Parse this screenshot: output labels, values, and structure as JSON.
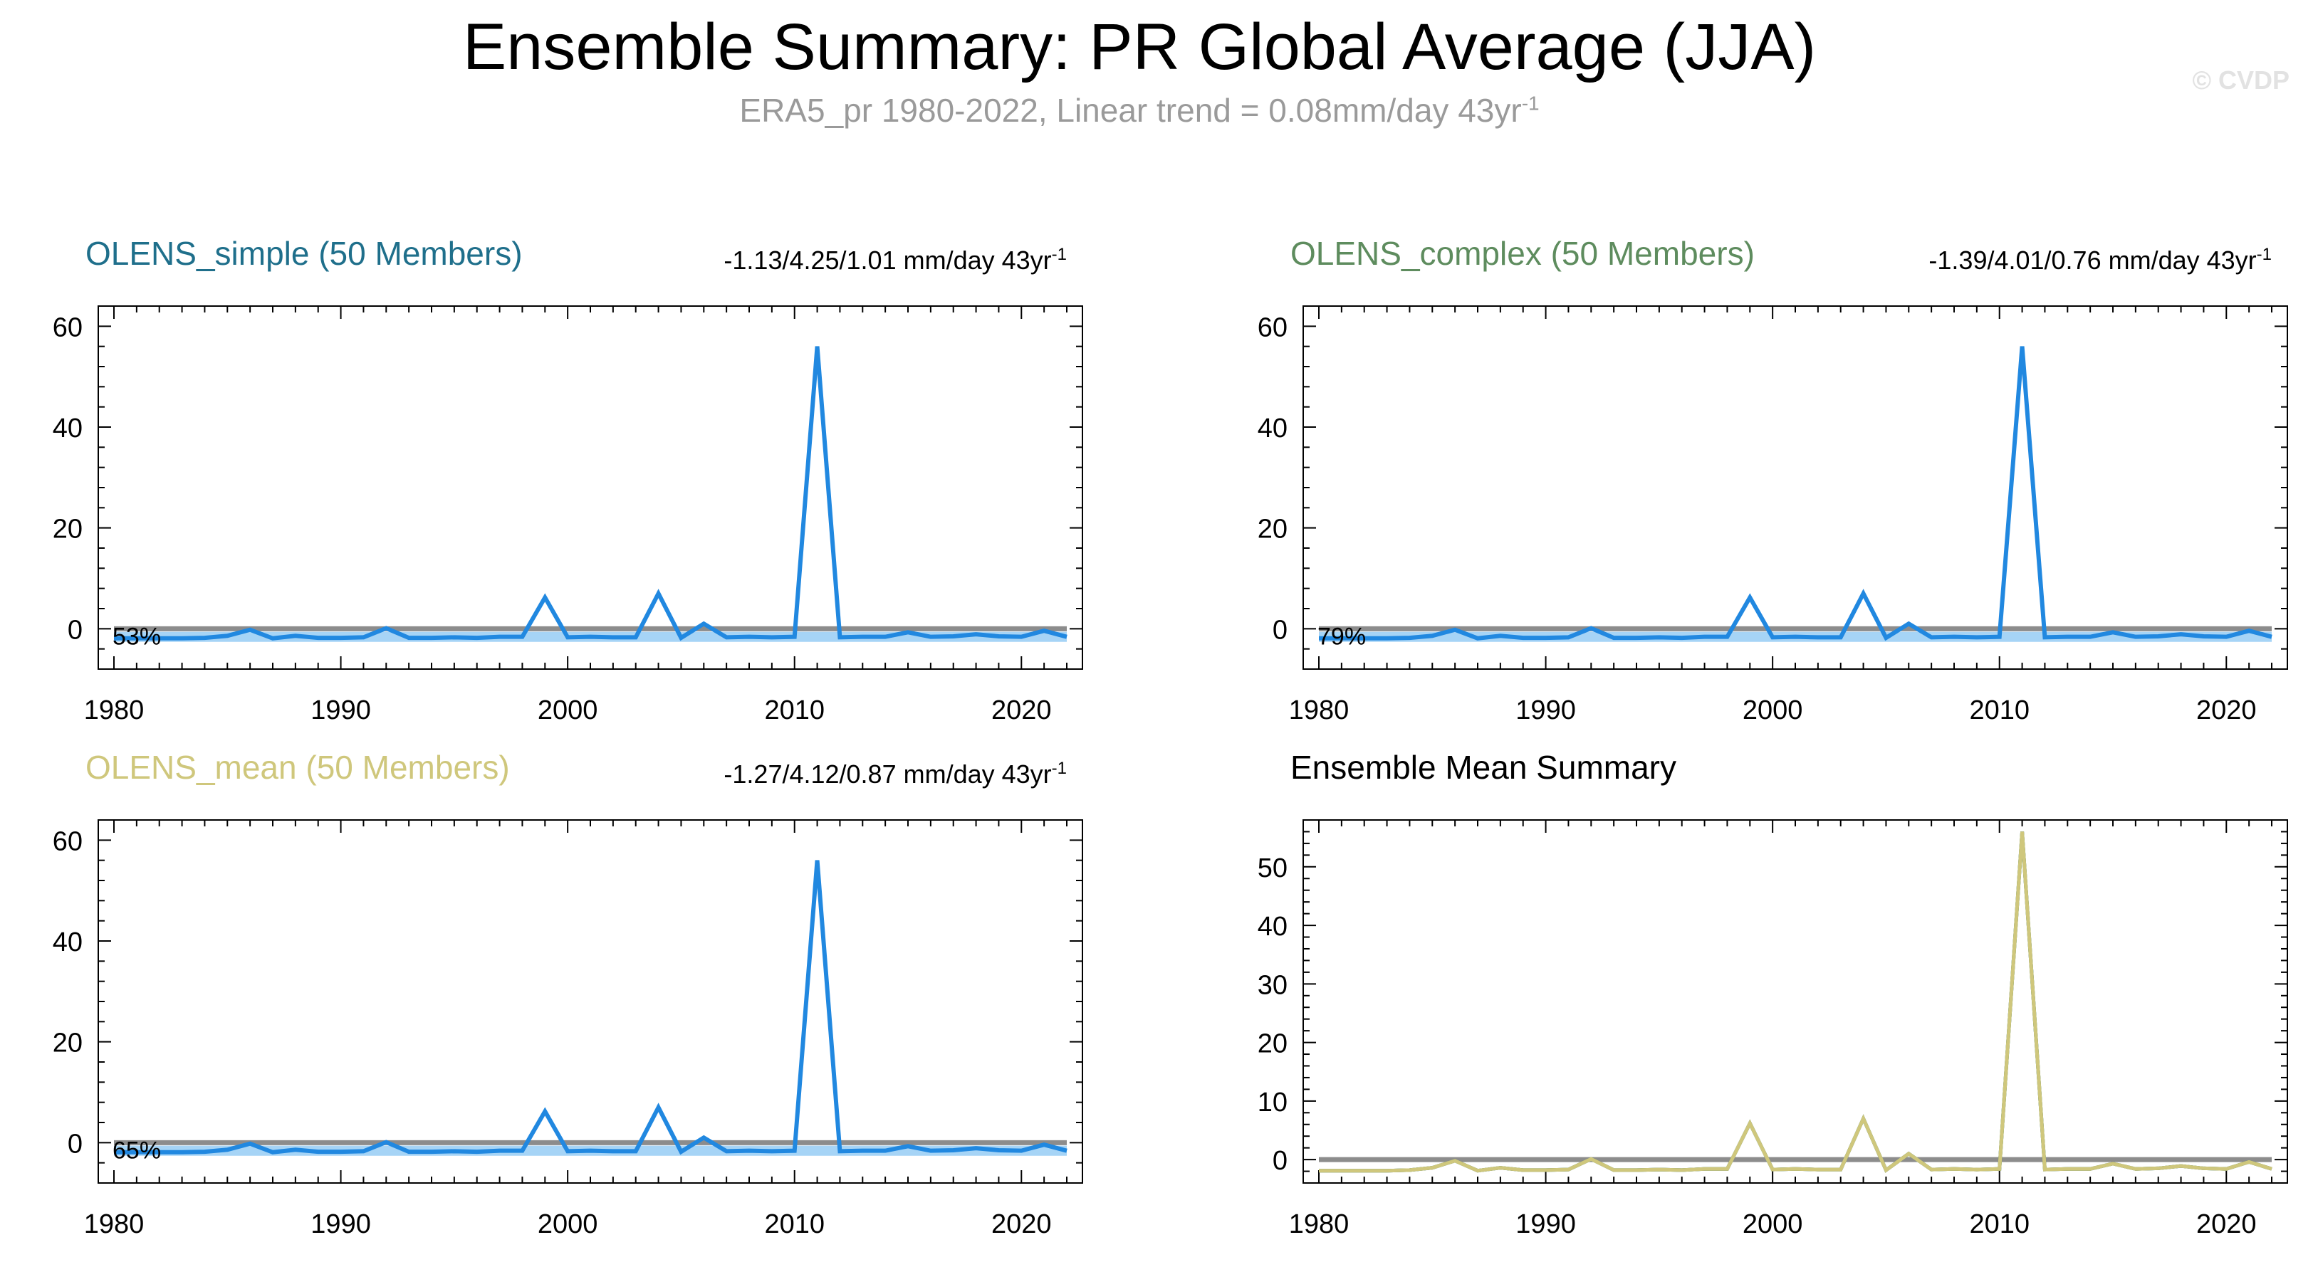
{
  "header": {
    "title": "Ensemble Summary: PR Global Average (JJA)",
    "subtitle_main": "ERA5_pr 1980-2022, Linear trend = 0.08mm/day 43yr",
    "subtitle_sup": "-1",
    "watermark": "© CVDP"
  },
  "colors": {
    "series_line": "#2188e0",
    "spread_fill": "#a6d4f6",
    "observation": "#8c8c8c",
    "olens_simple": "#1f6f8b",
    "olens_complex": "#5e8c5e",
    "olens_mean": "#cfc77c"
  },
  "chart_data": [
    {
      "type": "line",
      "title": "OLENS_simple (50 Members)",
      "title_color": "#1f6f8b",
      "trend_text": "-1.13/4.25/1.01 mm/day 43yr",
      "trend_sup": "-1",
      "percent_label": "53%",
      "x": [
        1980,
        1981,
        1982,
        1983,
        1984,
        1985,
        1986,
        1987,
        1988,
        1989,
        1990,
        1991,
        1992,
        1993,
        1994,
        1995,
        1996,
        1997,
        1998,
        1999,
        2000,
        2001,
        2002,
        2003,
        2004,
        2005,
        2006,
        2007,
        2008,
        2009,
        2010,
        2011,
        2012,
        2013,
        2014,
        2015,
        2016,
        2017,
        2018,
        2019,
        2020,
        2021,
        2022
      ],
      "series": [
        {
          "values": [
            -1.9,
            -1.9,
            -1.9,
            -1.9,
            -1.8,
            -1.4,
            -0.2,
            -1.9,
            -1.4,
            -1.8,
            -1.8,
            -1.7,
            0.1,
            -1.8,
            -1.8,
            -1.7,
            -1.8,
            -1.6,
            -1.6,
            6.2,
            -1.7,
            -1.6,
            -1.7,
            -1.7,
            7.0,
            -1.8,
            1.0,
            -1.7,
            -1.6,
            -1.7,
            -1.6,
            56.0,
            -1.7,
            -1.6,
            -1.6,
            -0.7,
            -1.6,
            -1.5,
            -1.1,
            -1.5,
            -1.6,
            -0.4,
            -1.6
          ]
        }
      ],
      "observation": {
        "values": [
          0.0,
          0.0,
          0.0,
          0.0,
          0.0,
          0.0,
          0.0,
          0.0,
          0.0,
          0.0,
          0.0,
          0.0,
          0.0,
          0.0,
          0.0,
          0.0,
          0.0,
          0.0,
          0.0,
          0.0,
          0.0,
          0.0,
          0.0,
          0.0,
          0.0,
          0.0,
          0.0,
          0.0,
          0.0,
          0.0,
          0.0,
          0.0,
          0.0,
          0.0,
          0.0,
          0.0,
          0.0,
          0.0,
          0.0,
          0.0,
          0.0,
          0.0,
          0.0
        ]
      },
      "band": {
        "upper": -0.6,
        "lower": -2.6
      },
      "xlim": [
        1980,
        2022
      ],
      "ylim": [
        -8,
        64
      ],
      "yticks": [
        0,
        20,
        40,
        60
      ],
      "xticks": [
        1980,
        1990,
        2000,
        2010,
        2020
      ]
    },
    {
      "type": "line",
      "title": "OLENS_complex (50 Members)",
      "title_color": "#5e8c5e",
      "trend_text": "-1.39/4.01/0.76 mm/day 43yr",
      "trend_sup": "-1",
      "percent_label": "79%",
      "x": [
        1980,
        1981,
        1982,
        1983,
        1984,
        1985,
        1986,
        1987,
        1988,
        1989,
        1990,
        1991,
        1992,
        1993,
        1994,
        1995,
        1996,
        1997,
        1998,
        1999,
        2000,
        2001,
        2002,
        2003,
        2004,
        2005,
        2006,
        2007,
        2008,
        2009,
        2010,
        2011,
        2012,
        2013,
        2014,
        2015,
        2016,
        2017,
        2018,
        2019,
        2020,
        2021,
        2022
      ],
      "series": [
        {
          "values": [
            -1.9,
            -1.9,
            -1.9,
            -1.9,
            -1.8,
            -1.4,
            -0.2,
            -1.9,
            -1.4,
            -1.8,
            -1.8,
            -1.7,
            0.1,
            -1.8,
            -1.8,
            -1.7,
            -1.8,
            -1.6,
            -1.6,
            6.2,
            -1.7,
            -1.6,
            -1.7,
            -1.7,
            7.0,
            -1.8,
            1.0,
            -1.7,
            -1.6,
            -1.7,
            -1.6,
            56.0,
            -1.7,
            -1.6,
            -1.6,
            -0.7,
            -1.6,
            -1.5,
            -1.1,
            -1.5,
            -1.6,
            -0.4,
            -1.6
          ]
        }
      ],
      "observation": {
        "values": [
          0.0,
          0.0,
          0.0,
          0.0,
          0.0,
          0.0,
          0.0,
          0.0,
          0.0,
          0.0,
          0.0,
          0.0,
          0.0,
          0.0,
          0.0,
          0.0,
          0.0,
          0.0,
          0.0,
          0.0,
          0.0,
          0.0,
          0.0,
          0.0,
          0.0,
          0.0,
          0.0,
          0.0,
          0.0,
          0.0,
          0.0,
          0.0,
          0.0,
          0.0,
          0.0,
          0.0,
          0.0,
          0.0,
          0.0,
          0.0,
          0.0,
          0.0,
          0.0
        ]
      },
      "band": {
        "upper": -0.6,
        "lower": -2.6
      },
      "xlim": [
        1980,
        2022
      ],
      "ylim": [
        -8,
        64
      ],
      "yticks": [
        0,
        20,
        40,
        60
      ],
      "xticks": [
        1980,
        1990,
        2000,
        2010,
        2020
      ]
    },
    {
      "type": "line",
      "title": "OLENS_mean (50 Members)",
      "title_color": "#cfc77c",
      "trend_text": "-1.27/4.12/0.87 mm/day 43yr",
      "trend_sup": "-1",
      "percent_label": "65%",
      "x": [
        1980,
        1981,
        1982,
        1983,
        1984,
        1985,
        1986,
        1987,
        1988,
        1989,
        1990,
        1991,
        1992,
        1993,
        1994,
        1995,
        1996,
        1997,
        1998,
        1999,
        2000,
        2001,
        2002,
        2003,
        2004,
        2005,
        2006,
        2007,
        2008,
        2009,
        2010,
        2011,
        2012,
        2013,
        2014,
        2015,
        2016,
        2017,
        2018,
        2019,
        2020,
        2021,
        2022
      ],
      "series": [
        {
          "values": [
            -1.9,
            -1.9,
            -1.9,
            -1.9,
            -1.8,
            -1.4,
            -0.2,
            -1.9,
            -1.4,
            -1.8,
            -1.8,
            -1.7,
            0.1,
            -1.8,
            -1.8,
            -1.7,
            -1.8,
            -1.6,
            -1.6,
            6.2,
            -1.7,
            -1.6,
            -1.7,
            -1.7,
            7.0,
            -1.8,
            1.0,
            -1.7,
            -1.6,
            -1.7,
            -1.6,
            56.0,
            -1.7,
            -1.6,
            -1.6,
            -0.7,
            -1.6,
            -1.5,
            -1.1,
            -1.5,
            -1.6,
            -0.4,
            -1.6
          ]
        }
      ],
      "observation": {
        "values": [
          0.0,
          0.0,
          0.0,
          0.0,
          0.0,
          0.0,
          0.0,
          0.0,
          0.0,
          0.0,
          0.0,
          0.0,
          0.0,
          0.0,
          0.0,
          0.0,
          0.0,
          0.0,
          0.0,
          0.0,
          0.0,
          0.0,
          0.0,
          0.0,
          0.0,
          0.0,
          0.0,
          0.0,
          0.0,
          0.0,
          0.0,
          0.0,
          0.0,
          0.0,
          0.0,
          0.0,
          0.0,
          0.0,
          0.0,
          0.0,
          0.0,
          0.0,
          0.0
        ]
      },
      "band": {
        "upper": -0.6,
        "lower": -2.6
      },
      "xlim": [
        1980,
        2022
      ],
      "ylim": [
        -8,
        64
      ],
      "yticks": [
        0,
        20,
        40,
        60
      ],
      "xticks": [
        1980,
        1990,
        2000,
        2010,
        2020
      ]
    },
    {
      "type": "line",
      "title": "Ensemble Mean Summary",
      "title_color": "#000000",
      "trend_text": "",
      "trend_sup": "",
      "percent_label": "",
      "x": [
        1980,
        1981,
        1982,
        1983,
        1984,
        1985,
        1986,
        1987,
        1988,
        1989,
        1990,
        1991,
        1992,
        1993,
        1994,
        1995,
        1996,
        1997,
        1998,
        1999,
        2000,
        2001,
        2002,
        2003,
        2004,
        2005,
        2006,
        2007,
        2008,
        2009,
        2010,
        2011,
        2012,
        2013,
        2014,
        2015,
        2016,
        2017,
        2018,
        2019,
        2020,
        2021,
        2022
      ],
      "series": [
        {
          "values": [
            -1.9,
            -1.9,
            -1.9,
            -1.9,
            -1.8,
            -1.4,
            -0.2,
            -1.9,
            -1.4,
            -1.8,
            -1.8,
            -1.7,
            0.1,
            -1.8,
            -1.8,
            -1.7,
            -1.8,
            -1.6,
            -1.6,
            6.2,
            -1.7,
            -1.6,
            -1.7,
            -1.7,
            7.0,
            -1.8,
            1.0,
            -1.7,
            -1.6,
            -1.7,
            -1.6,
            56.0,
            -1.7,
            -1.6,
            -1.6,
            -0.7,
            -1.6,
            -1.5,
            -1.1,
            -1.5,
            -1.6,
            -0.4,
            -1.6
          ]
        },
        {
          "values": [
            -1.9,
            -1.9,
            -1.9,
            -1.9,
            -1.8,
            -1.4,
            -0.2,
            -1.9,
            -1.4,
            -1.8,
            -1.8,
            -1.7,
            0.1,
            -1.8,
            -1.8,
            -1.7,
            -1.8,
            -1.6,
            -1.6,
            6.2,
            -1.7,
            -1.6,
            -1.7,
            -1.7,
            7.0,
            -1.8,
            1.0,
            -1.7,
            -1.6,
            -1.7,
            -1.6,
            56.0,
            -1.7,
            -1.6,
            -1.6,
            -0.7,
            -1.6,
            -1.5,
            -1.1,
            -1.5,
            -1.6,
            -0.4,
            -1.6
          ]
        },
        {
          "values": [
            -1.9,
            -1.9,
            -1.9,
            -1.9,
            -1.8,
            -1.4,
            -0.2,
            -1.9,
            -1.4,
            -1.8,
            -1.8,
            -1.7,
            0.1,
            -1.8,
            -1.8,
            -1.7,
            -1.8,
            -1.6,
            -1.6,
            6.2,
            -1.7,
            -1.6,
            -1.7,
            -1.7,
            7.0,
            -1.8,
            1.0,
            -1.7,
            -1.6,
            -1.7,
            -1.6,
            56.0,
            -1.7,
            -1.6,
            -1.6,
            -0.7,
            -1.6,
            -1.5,
            -1.1,
            -1.5,
            -1.6,
            -0.4,
            -1.6
          ]
        }
      ],
      "series_colors": [
        "#1f6f8b",
        "#5e8c5e",
        "#cfc77c"
      ],
      "observation": {
        "values": [
          0.0,
          0.0,
          0.0,
          0.0,
          0.0,
          0.0,
          0.0,
          0.0,
          0.0,
          0.0,
          0.0,
          0.0,
          0.0,
          0.0,
          0.0,
          0.0,
          0.0,
          0.0,
          0.0,
          0.0,
          0.0,
          0.0,
          0.0,
          0.0,
          0.0,
          0.0,
          0.0,
          0.0,
          0.0,
          0.0,
          0.0,
          0.0,
          0.0,
          0.0,
          0.0,
          0.0,
          0.0,
          0.0,
          0.0,
          0.0,
          0.0,
          0.0,
          0.0
        ]
      },
      "band": null,
      "xlim": [
        1980,
        2022
      ],
      "ylim": [
        -4,
        58
      ],
      "yticks": [
        0,
        10,
        20,
        30,
        40,
        50
      ],
      "xticks": [
        1980,
        1990,
        2000,
        2010,
        2020
      ]
    }
  ]
}
